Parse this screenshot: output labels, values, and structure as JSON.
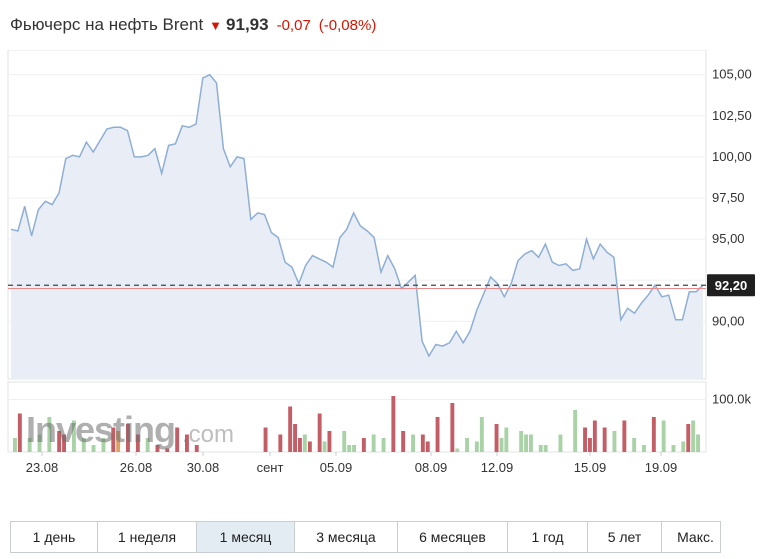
{
  "header": {
    "title": "Фьючерс на нефть Brent",
    "last_price": "91,93",
    "change": "-0,07",
    "change_pct": "(-0,08%)",
    "direction_icon": "arrow-down-icon",
    "down_color": "#d91400"
  },
  "watermark": {
    "text": "Investing",
    "suffix": ".com"
  },
  "current_price_label": "92,20",
  "tabs": [
    {
      "label": "1 день"
    },
    {
      "label": "1 неделя"
    },
    {
      "label": "1 месяц",
      "active": true
    },
    {
      "label": "3 месяца"
    },
    {
      "label": "6 месяцев"
    },
    {
      "label": "1 год"
    },
    {
      "label": "5 лет"
    },
    {
      "label": "Макс."
    }
  ],
  "colors": {
    "line": "#8eaed6",
    "area": "#e9eef6",
    "volume_up": "#a9d3a7",
    "volume_down": "#c45e66",
    "volume_neutral": "#e0a263",
    "baseline": "#e88a8a"
  },
  "chart_data": {
    "type": "area",
    "price_series": {
      "values": [
        95.6,
        95.5,
        97.0,
        95.2,
        96.8,
        97.3,
        97.1,
        97.8,
        99.9,
        100.1,
        100.0,
        100.9,
        100.3,
        101.0,
        101.7,
        101.8,
        101.8,
        101.6,
        100.0,
        100.0,
        100.1,
        100.5,
        99.0,
        100.7,
        100.8,
        101.9,
        101.8,
        102.0,
        104.8,
        105.0,
        104.5,
        100.5,
        99.4,
        100.0,
        99.9,
        96.2,
        96.6,
        96.5,
        95.4,
        95.1,
        93.6,
        93.3,
        92.3,
        93.4,
        94.0,
        93.8,
        93.6,
        93.3,
        95.1,
        95.6,
        96.6,
        95.8,
        95.5,
        95.1,
        93.0,
        94.0,
        93.2,
        92.0,
        92.4,
        92.8,
        88.8,
        87.9,
        88.6,
        88.5,
        88.7,
        89.4,
        88.7,
        89.4,
        90.7,
        91.7,
        92.7,
        92.3,
        91.5,
        92.3,
        93.7,
        94.1,
        94.3,
        93.9,
        94.7,
        93.6,
        93.4,
        93.5,
        93.1,
        93.2,
        95.0,
        93.8,
        94.7,
        94.2,
        93.9,
        90.1,
        90.8,
        90.5,
        91.1,
        91.6,
        92.2,
        91.5,
        91.6,
        90.1,
        90.1,
        91.8,
        91.8,
        92.2
      ],
      "ylim": [
        86.5,
        106.5
      ],
      "yticks": [
        "105,00",
        "102,50",
        "100,00",
        "97,50",
        "95,00",
        "92,50",
        "90,00"
      ],
      "ytick_values": [
        105.0,
        102.5,
        100.0,
        97.5,
        95.0,
        92.5,
        90.0
      ],
      "last_value": 92.2,
      "previous_close": 92.0
    },
    "volume_series": {
      "values": [
        8,
        22,
        0,
        8,
        0,
        10,
        0,
        20,
        0,
        12,
        10,
        0,
        18,
        0,
        8,
        0,
        4,
        0,
        8,
        0,
        14,
        12,
        0,
        16,
        0,
        10,
        0,
        8,
        0,
        4,
        0,
        2,
        0,
        14,
        0,
        10,
        0,
        4,
        0,
        0,
        0,
        0,
        0,
        0,
        0,
        0,
        0,
        0,
        0,
        0,
        0,
        14,
        0,
        0,
        10,
        0,
        26,
        16,
        8,
        10,
        6,
        0,
        22,
        6,
        12,
        0,
        0,
        12,
        4,
        4,
        0,
        8,
        0,
        10,
        0,
        8,
        0,
        32,
        0,
        12,
        0,
        10,
        0,
        10,
        6,
        0,
        20,
        0,
        0,
        28,
        2,
        0,
        8,
        0,
        6,
        20,
        0,
        0,
        16,
        8,
        14,
        0,
        0,
        12,
        10,
        10,
        0,
        4,
        4,
        0,
        0,
        10,
        0,
        0,
        24,
        0,
        14,
        8,
        18,
        0,
        14,
        0,
        12,
        0,
        18,
        0,
        8,
        0,
        4,
        0,
        20,
        0,
        18,
        0,
        4,
        0,
        6,
        16,
        18,
        10
      ],
      "colors": [
        "up",
        "down",
        "none",
        "up",
        "none",
        "up",
        "none",
        "up",
        "none",
        "down",
        "down",
        "none",
        "up",
        "none",
        "up",
        "none",
        "up",
        "none",
        "up",
        "none",
        "down",
        "neutral",
        "none",
        "down",
        "none",
        "down",
        "none",
        "up",
        "none",
        "down",
        "none",
        "down",
        "none",
        "down",
        "none",
        "down",
        "none",
        "down",
        "none",
        "none",
        "none",
        "none",
        "none",
        "none",
        "none",
        "none",
        "none",
        "none",
        "none",
        "none",
        "none",
        "down",
        "none",
        "none",
        "down",
        "none",
        "down",
        "down",
        "down",
        "up",
        "down",
        "none",
        "down",
        "up",
        "down",
        "none",
        "none",
        "up",
        "up",
        "up",
        "none",
        "down",
        "none",
        "up",
        "none",
        "up",
        "none",
        "down",
        "none",
        "down",
        "none",
        "up",
        "none",
        "down",
        "down",
        "none",
        "down",
        "none",
        "none",
        "down",
        "up",
        "none",
        "up",
        "none",
        "up",
        "up",
        "none",
        "none",
        "down",
        "up",
        "up",
        "none",
        "none",
        "up",
        "up",
        "up",
        "none",
        "up",
        "up",
        "none",
        "none",
        "up",
        "none",
        "none",
        "up",
        "none",
        "down",
        "down",
        "down",
        "none",
        "down",
        "none",
        "up",
        "none",
        "down",
        "none",
        "up",
        "none",
        "up",
        "none",
        "down",
        "none",
        "up",
        "none",
        "up",
        "none",
        "up",
        "down",
        "up",
        "up"
      ],
      "ylim": [
        0,
        40
      ],
      "ytick_label": "100.0k",
      "ytick_value": 30
    },
    "x_labels": [
      "23.08",
      "26.08",
      "30.08",
      "сент",
      "05.09",
      "08.09",
      "12.09",
      "15.09",
      "19.09"
    ],
    "grid": true
  }
}
